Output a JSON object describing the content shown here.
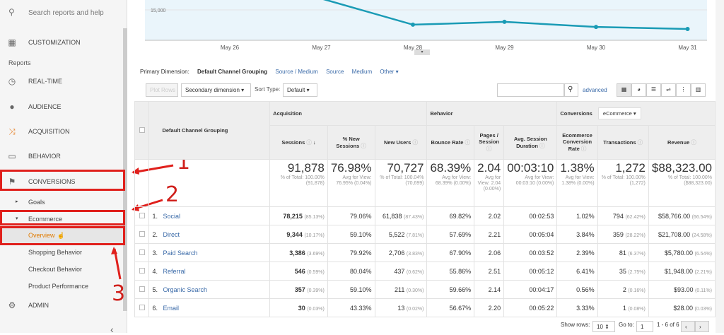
{
  "sidebar": {
    "search_placeholder": "Search reports and help",
    "customization": "CUSTOMIZATION",
    "reports_label": "Reports",
    "items": [
      {
        "label": "REAL-TIME",
        "icon": "clock-icon"
      },
      {
        "label": "AUDIENCE",
        "icon": "person-icon"
      },
      {
        "label": "ACQUISITION",
        "icon": "acquisition-icon"
      },
      {
        "label": "BEHAVIOR",
        "icon": "behavior-icon"
      },
      {
        "label": "CONVERSIONS",
        "icon": "flag-icon"
      }
    ],
    "goals": "Goals",
    "ecommerce": "Ecommerce",
    "sub": [
      "Overview",
      "Shopping Behavior",
      "Checkout Behavior",
      "Product Performance"
    ],
    "admin": "ADMIN",
    "collapse": "‹"
  },
  "annotations": [
    "1",
    "2",
    "3"
  ],
  "chart_data": {
    "type": "line",
    "x": [
      "May 26",
      "May 27",
      "May 28",
      "May 29",
      "May 30",
      "May 31"
    ],
    "y_ticks": [
      "15,000"
    ],
    "series": [
      {
        "values": [
          null,
          null,
          7700,
          9100,
          6600,
          5600
        ]
      }
    ],
    "color": "#1a9bb5"
  },
  "dimension": {
    "label": "Primary Dimension:",
    "active": "Default Channel Grouping",
    "options": [
      "Source / Medium",
      "Source",
      "Medium",
      "Other ▾"
    ]
  },
  "toolbar": {
    "plot_rows": "Plot Rows",
    "secondary": "Secondary dimension ▾",
    "sort_label": "Sort Type:",
    "sort": "Default ▾",
    "advanced": "advanced"
  },
  "table": {
    "dim_header": "Default Channel Grouping",
    "groups": [
      "Acquisition",
      "Behavior",
      "Conversions"
    ],
    "conv_select": "eCommerce ▾",
    "columns": [
      "Sessions",
      "% New Sessions",
      "New Users",
      "Bounce Rate",
      "Pages / Session",
      "Avg. Session Duration",
      "Ecommerce Conversion Rate",
      "Transactions",
      "Revenue"
    ],
    "totals": [
      {
        "v": "91,878",
        "s": "% of Total: 100.00% (91,878)"
      },
      {
        "v": "76.98%",
        "s": "Avg for View: 76.95% (0.04%)"
      },
      {
        "v": "70,727",
        "s": "% of Total: 100.04% (70,699)"
      },
      {
        "v": "68.39%",
        "s": "Avg for View: 68.39% (0.00%)"
      },
      {
        "v": "2.04",
        "s": "Avg for View: 2.04 (0.00%)"
      },
      {
        "v": "00:03:10",
        "s": "Avg for View: 00:03:10 (0.00%)"
      },
      {
        "v": "1.38%",
        "s": "Avg for View: 1.38% (0.00%)"
      },
      {
        "v": "1,272",
        "s": "% of Total: 100.00% (1,272)"
      },
      {
        "v": "$88,323.00",
        "s": "% of Total: 100.00% ($88,323.00)"
      }
    ],
    "rows": [
      [
        "1.",
        "Social",
        "78,215",
        "(85.13%)",
        "79.06%",
        "61,838",
        "(87.43%)",
        "69.82%",
        "2.02",
        "00:02:53",
        "1.02%",
        "794",
        "(62.42%)",
        "$58,766.00",
        "(66.54%)"
      ],
      [
        "2.",
        "Direct",
        "9,344",
        "(10.17%)",
        "59.10%",
        "5,522",
        "(7.81%)",
        "57.69%",
        "2.21",
        "00:05:04",
        "3.84%",
        "359",
        "(28.22%)",
        "$21,708.00",
        "(24.58%)"
      ],
      [
        "3.",
        "Paid Search",
        "3,386",
        "(3.69%)",
        "79.92%",
        "2,706",
        "(3.83%)",
        "67.90%",
        "2.06",
        "00:03:52",
        "2.39%",
        "81",
        "(6.37%)",
        "$5,780.00",
        "(6.54%)"
      ],
      [
        "4.",
        "Referral",
        "546",
        "(0.59%)",
        "80.04%",
        "437",
        "(0.62%)",
        "55.86%",
        "2.51",
        "00:05:12",
        "6.41%",
        "35",
        "(2.75%)",
        "$1,948.00",
        "(2.21%)"
      ],
      [
        "5.",
        "Organic Search",
        "357",
        "(0.39%)",
        "59.10%",
        "211",
        "(0.30%)",
        "59.66%",
        "2.14",
        "00:04:17",
        "0.56%",
        "2",
        "(0.16%)",
        "$93.00",
        "(0.11%)"
      ],
      [
        "6.",
        "Email",
        "30",
        "(0.03%)",
        "43.33%",
        "13",
        "(0.02%)",
        "56.67%",
        "2.20",
        "00:05:22",
        "3.33%",
        "1",
        "(0.08%)",
        "$28.00",
        "(0.03%)"
      ]
    ]
  },
  "footer": {
    "show_rows": "Show rows:",
    "rows_value": "10 ⇕",
    "goto": "Go to:",
    "goto_value": "1",
    "range": "1 - 6 of 6"
  }
}
